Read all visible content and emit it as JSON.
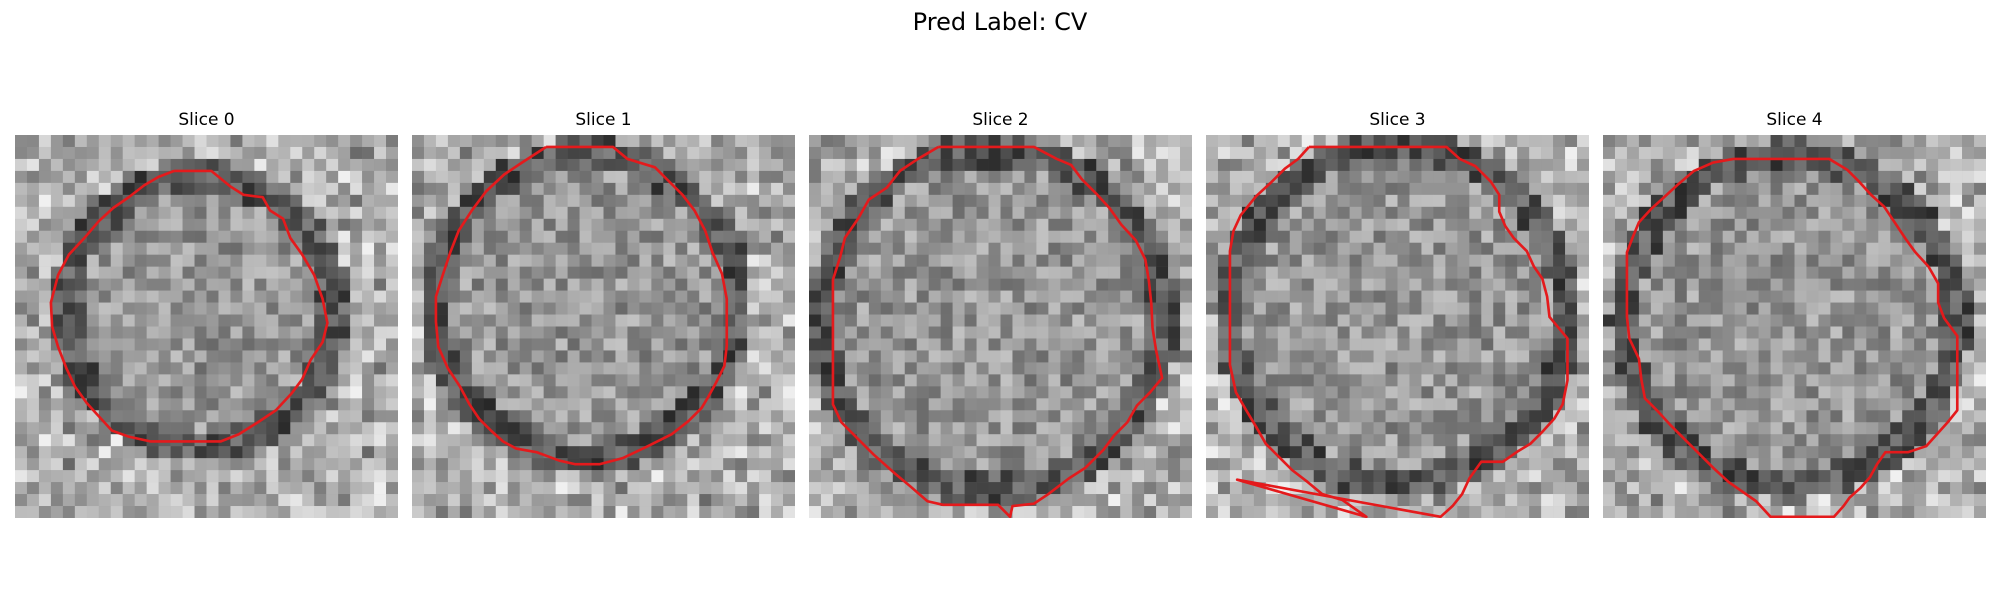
{
  "figure": {
    "title": "Pred Label: CV"
  },
  "panels": [
    {
      "title": "Slice 0",
      "seed": 11,
      "contour_color": "#e41a1c"
    },
    {
      "title": "Slice 1",
      "seed": 23,
      "contour_color": "#e41a1c"
    },
    {
      "title": "Slice 2",
      "seed": 37,
      "contour_color": "#e41a1c"
    },
    {
      "title": "Slice 3",
      "seed": 41,
      "contour_color": "#e41a1c"
    },
    {
      "title": "Slice 4",
      "seed": 53,
      "contour_color": "#e41a1c"
    }
  ]
}
